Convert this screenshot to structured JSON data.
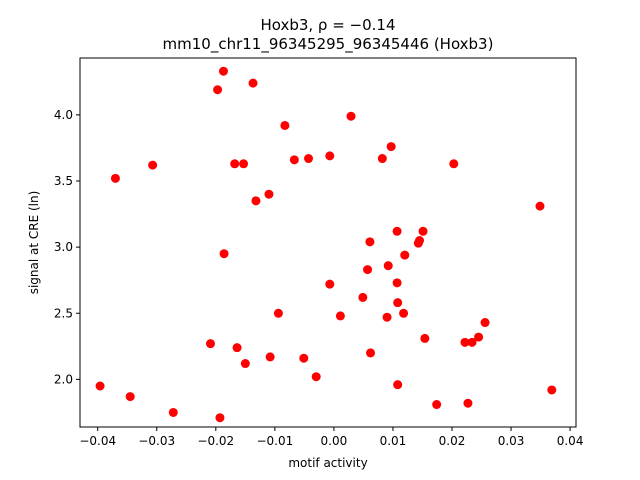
{
  "chart_data": {
    "type": "scatter",
    "title_line1": "Hoxb3, ρ = −0.14",
    "title_line2": "mm10_chr11_96345295_96345446 (Hoxb3)",
    "xlabel": "motif activity",
    "ylabel": "signal at CRE (ln)",
    "xlim": [
      -0.043,
      0.041
    ],
    "ylim": [
      1.64,
      4.43
    ],
    "xticks": [
      -0.04,
      -0.03,
      -0.02,
      -0.01,
      0.0,
      0.01,
      0.02,
      0.03,
      0.04
    ],
    "xtick_labels": [
      "−0.04",
      "−0.03",
      "−0.02",
      "−0.01",
      "0.00",
      "0.01",
      "0.02",
      "0.03",
      "0.04"
    ],
    "yticks": [
      2.0,
      2.5,
      3.0,
      3.5,
      4.0
    ],
    "ytick_labels": [
      "2.0",
      "2.5",
      "3.0",
      "3.5",
      "4.0"
    ],
    "grid": false,
    "marker_color": "#ff0000",
    "points": [
      {
        "x": -0.0396,
        "y": 1.95
      },
      {
        "x": -0.037,
        "y": 3.52
      },
      {
        "x": -0.0345,
        "y": 1.87
      },
      {
        "x": -0.0307,
        "y": 3.62
      },
      {
        "x": -0.0272,
        "y": 1.75
      },
      {
        "x": -0.0209,
        "y": 2.27
      },
      {
        "x": -0.0197,
        "y": 4.19
      },
      {
        "x": -0.0193,
        "y": 1.71
      },
      {
        "x": -0.0187,
        "y": 4.33
      },
      {
        "x": -0.0186,
        "y": 2.95
      },
      {
        "x": -0.0168,
        "y": 3.63
      },
      {
        "x": -0.0164,
        "y": 2.24
      },
      {
        "x": -0.0153,
        "y": 3.63
      },
      {
        "x": -0.015,
        "y": 2.12
      },
      {
        "x": -0.0137,
        "y": 4.24
      },
      {
        "x": -0.0132,
        "y": 3.35
      },
      {
        "x": -0.011,
        "y": 3.4
      },
      {
        "x": -0.0108,
        "y": 2.17
      },
      {
        "x": -0.0094,
        "y": 2.5
      },
      {
        "x": -0.0083,
        "y": 3.92
      },
      {
        "x": -0.0067,
        "y": 3.66
      },
      {
        "x": -0.0051,
        "y": 2.16
      },
      {
        "x": -0.0043,
        "y": 3.67
      },
      {
        "x": -0.003,
        "y": 2.02
      },
      {
        "x": -0.0007,
        "y": 3.69
      },
      {
        "x": -0.0007,
        "y": 2.72
      },
      {
        "x": 0.0011,
        "y": 2.48
      },
      {
        "x": 0.0029,
        "y": 3.99
      },
      {
        "x": 0.0049,
        "y": 2.62
      },
      {
        "x": 0.0057,
        "y": 2.83
      },
      {
        "x": 0.0062,
        "y": 2.2
      },
      {
        "x": 0.0061,
        "y": 3.04
      },
      {
        "x": 0.0082,
        "y": 3.67
      },
      {
        "x": 0.009,
        "y": 2.47
      },
      {
        "x": 0.0092,
        "y": 2.86
      },
      {
        "x": 0.0097,
        "y": 3.76
      },
      {
        "x": 0.0107,
        "y": 3.12
      },
      {
        "x": 0.0107,
        "y": 2.73
      },
      {
        "x": 0.0108,
        "y": 2.58
      },
      {
        "x": 0.0108,
        "y": 1.96
      },
      {
        "x": 0.0118,
        "y": 2.5
      },
      {
        "x": 0.012,
        "y": 2.94
      },
      {
        "x": 0.0143,
        "y": 3.03
      },
      {
        "x": 0.0145,
        "y": 3.05
      },
      {
        "x": 0.0151,
        "y": 3.12
      },
      {
        "x": 0.0154,
        "y": 2.31
      },
      {
        "x": 0.0174,
        "y": 1.81
      },
      {
        "x": 0.0203,
        "y": 3.63
      },
      {
        "x": 0.0222,
        "y": 2.28
      },
      {
        "x": 0.0227,
        "y": 1.82
      },
      {
        "x": 0.0234,
        "y": 2.28
      },
      {
        "x": 0.0245,
        "y": 2.32
      },
      {
        "x": 0.0256,
        "y": 2.43
      },
      {
        "x": 0.0349,
        "y": 3.31
      },
      {
        "x": 0.0369,
        "y": 1.92
      }
    ]
  }
}
